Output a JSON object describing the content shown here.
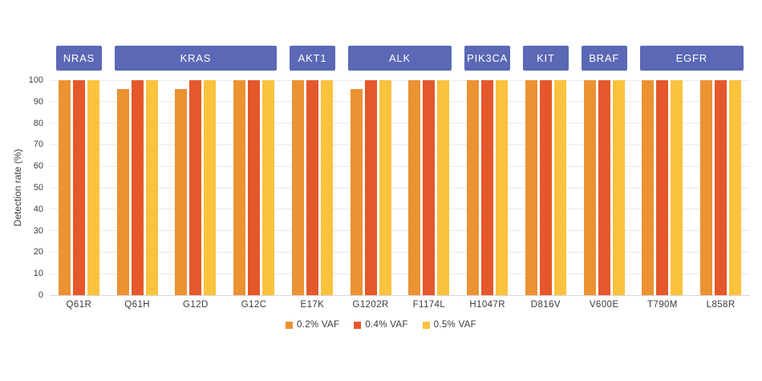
{
  "chart_data": {
    "type": "bar",
    "title": "",
    "ylabel": "Detection rate (%)",
    "xlabel": "",
    "ylim": [
      0,
      100
    ],
    "yticks": [
      0,
      10,
      20,
      30,
      40,
      50,
      60,
      70,
      80,
      90,
      100
    ],
    "grid": "horizontal",
    "legend_position": "bottom",
    "categories": [
      "Q61R",
      "Q61H",
      "G12D",
      "G12C",
      "E17K",
      "G1202R",
      "F1174L",
      "H1047R",
      "D816V",
      "V600E",
      "T790M",
      "L858R"
    ],
    "gene_groups": [
      {
        "label": "NRAS",
        "start": 0,
        "end": 0
      },
      {
        "label": "KRAS",
        "start": 1,
        "end": 3
      },
      {
        "label": "AKT1",
        "start": 4,
        "end": 4
      },
      {
        "label": "ALK",
        "start": 5,
        "end": 6
      },
      {
        "label": "PIK3CA",
        "start": 7,
        "end": 7
      },
      {
        "label": "KIT",
        "start": 8,
        "end": 8
      },
      {
        "label": "BRAF",
        "start": 9,
        "end": 9
      },
      {
        "label": "EGFR",
        "start": 10,
        "end": 11
      }
    ],
    "series": [
      {
        "name": "0.2% VAF",
        "color": "#EB9233",
        "values": [
          100,
          96,
          96,
          100,
          100,
          96,
          100,
          100,
          100,
          100,
          100,
          100
        ]
      },
      {
        "name": "0.4% VAF",
        "color": "#E4582B",
        "values": [
          100,
          100,
          100,
          100,
          100,
          100,
          100,
          100,
          100,
          100,
          100,
          100
        ]
      },
      {
        "name": "0.5% VAF",
        "color": "#FAC23D",
        "values": [
          100,
          100,
          100,
          100,
          100,
          100,
          100,
          100,
          100,
          100,
          100,
          100
        ]
      }
    ],
    "colors": {
      "gene_box": "#5B68B5",
      "gridline": "#EAEAEA",
      "zero_line": "#D8D8D8",
      "tick_text": "#3E3E3E"
    }
  }
}
